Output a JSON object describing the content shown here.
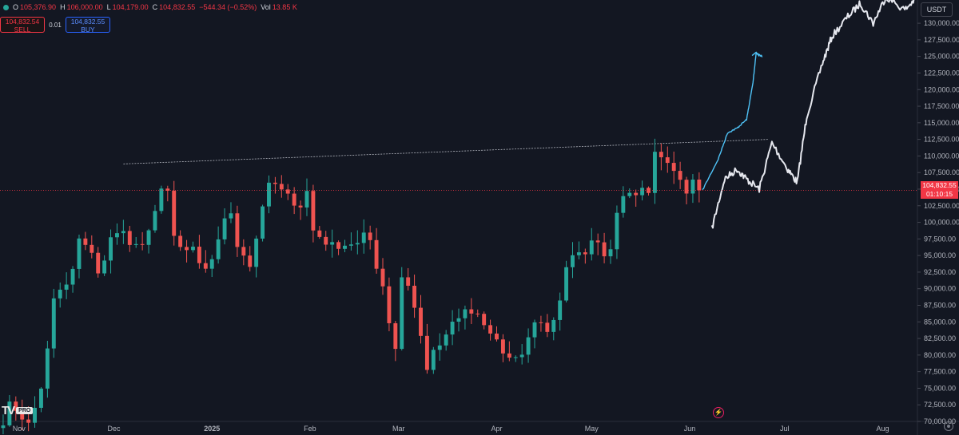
{
  "header": {
    "ohlc": [
      {
        "key": "O",
        "value": "105,376.90"
      },
      {
        "key": "H",
        "value": "106,000.00"
      },
      {
        "key": "L",
        "value": "104,179.00"
      },
      {
        "key": "C",
        "value": "104,832.55"
      }
    ],
    "change": "−544.34 (−0.52%)",
    "vol_key": "Vol",
    "vol_value": "13.85 K"
  },
  "trade": {
    "sell_price": "104,832.54",
    "sell_label": "SELL",
    "spread": "0.01",
    "buy_price": "104,832.55",
    "buy_label": "BUY"
  },
  "currency": "USDT",
  "last_price": {
    "value": "104,832.55",
    "countdown": "01:10:15"
  },
  "brand": {
    "logo": "TV",
    "badge": "PRO"
  },
  "colors": {
    "up": "#26a69a",
    "down": "#ef5350",
    "projection_blue": "#4fc3f7",
    "projection_white": "#e6e8ef",
    "price_line": "#f23645",
    "trendline": "#b2b5be"
  },
  "chart_data": {
    "type": "candlestick",
    "timeframe_days": 2,
    "y_axis": {
      "range": [
        70000,
        133500
      ],
      "tick_labels": [
        "70,000.00",
        "72,500.00",
        "75,000.00",
        "77,500.00",
        "80,000.00",
        "82,500.00",
        "85,000.00",
        "87,500.00",
        "90,000.00",
        "92,500.00",
        "95,000.00",
        "97,500.00",
        "100,000.00",
        "102,500.00",
        "105,000.00",
        "107,500.00",
        "110,000.00",
        "112,500.00",
        "115,000.00",
        "117,500.00",
        "120,000.00",
        "122,500.00",
        "125,000.00",
        "127,500.00",
        "130,000.00"
      ]
    },
    "x_axis": {
      "range": [
        "2024-10-26",
        "2025-08-12"
      ],
      "ticks": [
        {
          "label": "Nov",
          "date": "2024-11-01"
        },
        {
          "label": "Dec",
          "date": "2024-12-01"
        },
        {
          "label": "2025",
          "date": "2025-01-01"
        },
        {
          "label": "Feb",
          "date": "2025-02-01"
        },
        {
          "label": "Mar",
          "date": "2025-03-01"
        },
        {
          "label": "Apr",
          "date": "2025-04-01"
        },
        {
          "label": "May",
          "date": "2025-05-01"
        },
        {
          "label": "Jun",
          "date": "2025-06-01"
        },
        {
          "label": "Jul",
          "date": "2025-07-01"
        },
        {
          "label": "Aug",
          "date": "2025-08-01"
        }
      ]
    },
    "price_keypoints": [
      [
        "2024-10-27",
        69000
      ],
      [
        "2024-10-29",
        73500
      ],
      [
        "2024-11-02",
        69000
      ],
      [
        "2024-11-05",
        69500
      ],
      [
        "2024-11-10",
        80000
      ],
      [
        "2024-11-12",
        88000
      ],
      [
        "2024-11-16",
        90000
      ],
      [
        "2024-11-21",
        98500
      ],
      [
        "2024-11-26",
        93000
      ],
      [
        "2024-11-30",
        97000
      ],
      [
        "2024-12-05",
        98000
      ],
      [
        "2024-12-10",
        96000
      ],
      [
        "2024-12-17",
        107000
      ],
      [
        "2024-12-20",
        97000
      ],
      [
        "2024-12-26",
        95500
      ],
      [
        "2024-12-31",
        93500
      ],
      [
        "2025-01-06",
        102000
      ],
      [
        "2025-01-10",
        94500
      ],
      [
        "2025-01-13",
        94000
      ],
      [
        "2025-01-20",
        107000
      ],
      [
        "2025-01-27",
        102000
      ],
      [
        "2025-01-31",
        104500
      ],
      [
        "2025-02-03",
        97500
      ],
      [
        "2025-02-08",
        96500
      ],
      [
        "2025-02-15",
        97000
      ],
      [
        "2025-02-20",
        97500
      ],
      [
        "2025-02-24",
        91000
      ],
      [
        "2025-02-28",
        80500
      ],
      [
        "2025-03-02",
        93000
      ],
      [
        "2025-03-05",
        90000
      ],
      [
        "2025-03-10",
        78500
      ],
      [
        "2025-03-16",
        83000
      ],
      [
        "2025-03-24",
        87500
      ],
      [
        "2025-03-31",
        82500
      ],
      [
        "2025-04-07",
        78500
      ],
      [
        "2025-04-10",
        82000
      ],
      [
        "2025-04-14",
        84500
      ],
      [
        "2025-04-20",
        85000
      ],
      [
        "2025-04-23",
        93500
      ],
      [
        "2025-05-01",
        96500
      ],
      [
        "2025-05-06",
        94500
      ],
      [
        "2025-05-10",
        103500
      ],
      [
        "2025-05-14",
        103500
      ],
      [
        "2025-05-19",
        105500
      ],
      [
        "2025-05-22",
        111500
      ],
      [
        "2025-05-26",
        109000
      ],
      [
        "2025-05-30",
        104500
      ],
      [
        "2025-06-02",
        105500
      ],
      [
        "2025-06-04",
        104800
      ]
    ],
    "last_price": 104832.55,
    "trendline": [
      [
        "2024-12-04",
        108800
      ],
      [
        "2025-06-26",
        112500
      ]
    ],
    "blue_projection": [
      [
        "2025-06-05",
        104800
      ],
      [
        "2025-06-10",
        109500
      ],
      [
        "2025-06-13",
        113500
      ],
      [
        "2025-06-16",
        114200
      ],
      [
        "2025-06-19",
        115500
      ],
      [
        "2025-06-21",
        121000
      ],
      [
        "2025-06-22",
        125500
      ],
      [
        "2025-06-24",
        125000
      ]
    ],
    "white_projection": [
      [
        "2025-06-08",
        99000
      ],
      [
        "2025-06-12",
        106500
      ],
      [
        "2025-06-16",
        108000
      ],
      [
        "2025-06-19",
        106500
      ],
      [
        "2025-06-23",
        105000
      ],
      [
        "2025-06-27",
        112000
      ],
      [
        "2025-07-02",
        108000
      ],
      [
        "2025-07-05",
        106000
      ],
      [
        "2025-07-08",
        116000
      ],
      [
        "2025-07-13",
        124000
      ],
      [
        "2025-07-16",
        128000
      ],
      [
        "2025-07-21",
        131000
      ],
      [
        "2025-07-25",
        133000
      ],
      [
        "2025-07-29",
        130000
      ],
      [
        "2025-08-02",
        134000
      ],
      [
        "2025-08-08",
        132000
      ],
      [
        "2025-08-12",
        134000
      ]
    ]
  }
}
